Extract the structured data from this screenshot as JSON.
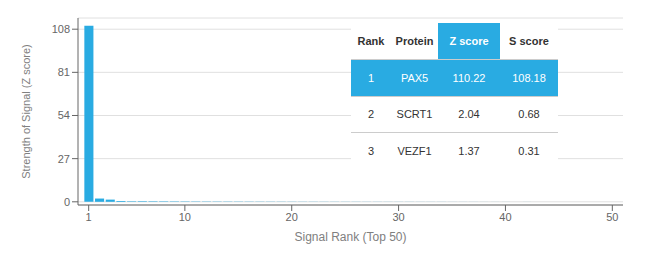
{
  "chart_data": {
    "type": "bar",
    "xlabel": "Signal Rank (Top 50)",
    "ylabel": "Strength of Signal (Z score)",
    "x": [
      1,
      2,
      3,
      4,
      5,
      6,
      7,
      8,
      9,
      10,
      11,
      12,
      13,
      14,
      15,
      16,
      17,
      18,
      19,
      20,
      21,
      22,
      23,
      24,
      25,
      26,
      27,
      28,
      29,
      30,
      31,
      32,
      33,
      34,
      35,
      36,
      37,
      38,
      39,
      40,
      41,
      42,
      43,
      44,
      45,
      46,
      47,
      48,
      49,
      50
    ],
    "values": [
      110.22,
      2.04,
      1.37,
      0.5,
      0.4,
      0.35,
      0.3,
      0.28,
      0.25,
      0.22,
      0.2,
      0.18,
      0.17,
      0.16,
      0.15,
      0.14,
      0.13,
      0.12,
      0.11,
      0.1,
      0.09,
      0.09,
      0.08,
      0.08,
      0.07,
      0.07,
      0.06,
      0.06,
      0.05,
      0.05,
      0.05,
      0.04,
      0.04,
      0.04,
      0.03,
      0.03,
      0.03,
      0.02,
      0.02,
      0.02,
      0.02,
      0.02,
      0.01,
      0.01,
      0.01,
      0.01,
      0.01,
      0.01,
      0.01,
      0.01
    ],
    "color": "#29abe2",
    "xlim": [
      0,
      51
    ],
    "xticks": [
      1,
      10,
      20,
      30,
      40,
      50
    ],
    "ylim": [
      -2,
      115
    ],
    "yticks": [
      0,
      27,
      54,
      81,
      108
    ],
    "grid": true,
    "table": {
      "headers": [
        "Rank",
        "Protein",
        "Z score",
        "S score"
      ],
      "rows": [
        [
          "1",
          "PAX5",
          "110.22",
          "108.18"
        ],
        [
          "2",
          "SCRT1",
          "2.04",
          "0.68"
        ],
        [
          "3",
          "VEZF1",
          "1.37",
          "0.31"
        ]
      ]
    }
  }
}
